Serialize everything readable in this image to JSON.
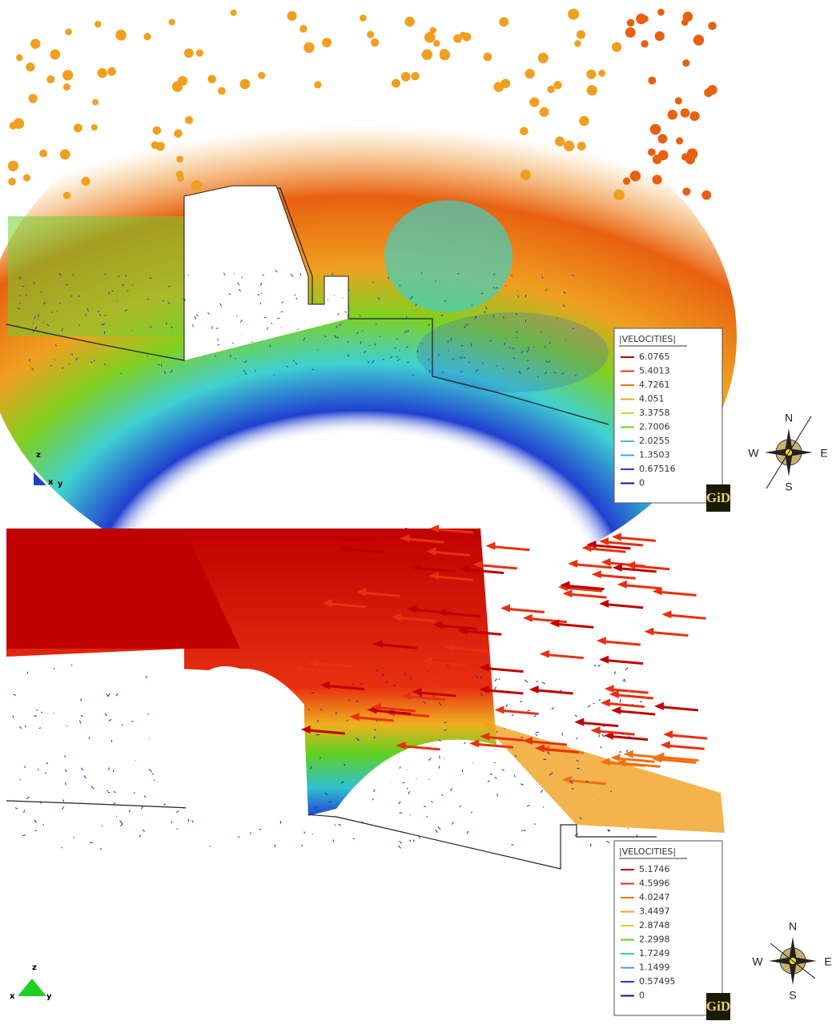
{
  "panels": [
    {
      "legend": {
        "title": "|VELOCITIES|",
        "values": [
          6.0765,
          5.4013,
          4.7261,
          4.051,
          3.3758,
          2.7006,
          2.0255,
          1.3503,
          0.67516,
          0
        ]
      },
      "axes": {
        "z": "z",
        "x": "x",
        "y": "y"
      },
      "compass": {
        "n": "N",
        "w": "W",
        "e": "E",
        "s": "S"
      },
      "logo": "GiD"
    },
    {
      "legend": {
        "title": "|VELOCITIES|",
        "values": [
          5.1746,
          4.5996,
          4.0247,
          3.4497,
          2.8748,
          2.2998,
          1.7249,
          1.1499,
          0.57495,
          0
        ]
      },
      "axes": {
        "z": "z",
        "x": "x",
        "y": "y"
      },
      "compass": {
        "n": "N",
        "w": "W",
        "e": "E",
        "s": "S"
      },
      "logo": "GiD"
    }
  ]
}
